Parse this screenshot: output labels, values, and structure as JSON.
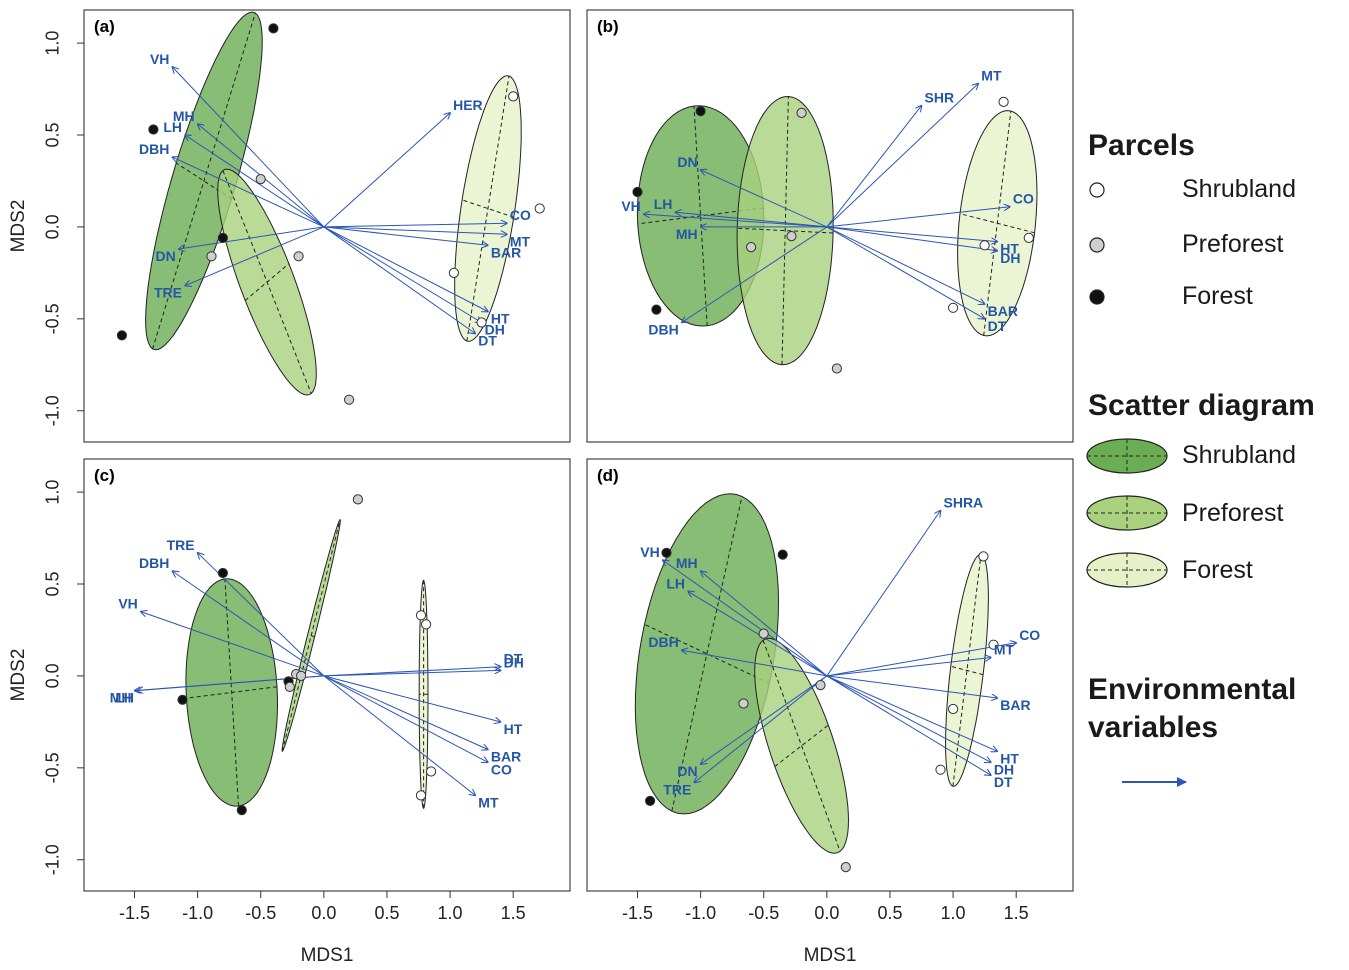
{
  "colors": {
    "shrubland_fill": "#6aad53",
    "preforest_fill": "#a9d17e",
    "forest_fill": "#e6f1c8",
    "arrow": "#2c56b8",
    "label": "#2456a6",
    "point_shrubland": "#ffffff",
    "point_preforest": "#cfcfcf",
    "point_forest": "#111111"
  },
  "axes": {
    "xlabel": "MDS1",
    "ylabel": "MDS2",
    "xlim": [
      -1.9,
      1.95
    ],
    "ylim": [
      -1.17,
      1.18
    ],
    "xticks": [
      "-1.5",
      "-1.0",
      "-0.5",
      "0.0",
      "0.5",
      "1.0",
      "1.5"
    ],
    "xtick_values": [
      -1.5,
      -1.0,
      -0.5,
      0.0,
      0.5,
      1.0,
      1.5
    ],
    "yticks": [
      "-1.0",
      "-0.5",
      "0.0",
      "0.5",
      "1.0"
    ],
    "ytick_values": [
      -1.0,
      -0.5,
      0.0,
      0.5,
      1.0
    ]
  },
  "legend": {
    "parcels_title": "Parcels",
    "parcels": [
      {
        "label": "Shrubland",
        "color": "#ffffff"
      },
      {
        "label": "Preforest",
        "color": "#cfcfcf"
      },
      {
        "label": "Forest",
        "color": "#111111"
      }
    ],
    "scatter_title": "Scatter diagram",
    "scatter": [
      {
        "label": "Shrubland",
        "color": "#6aad53"
      },
      {
        "label": "Preforest",
        "color": "#a9d17e"
      },
      {
        "label": "Forest",
        "color": "#e6f1c8"
      }
    ],
    "env_title_line1": "Environmental",
    "env_title_line2": "variables"
  },
  "chart_data": [
    {
      "type": "scatter",
      "panel": "(a)",
      "ellipses": [
        {
          "group": "Shrubland",
          "fill": "#6aad53",
          "cx": -0.95,
          "cy": 0.25,
          "a": 1.0,
          "b": 0.24,
          "angle_deg": 66
        },
        {
          "group": "Preforest",
          "fill": "#a9d17e",
          "cx": -0.45,
          "cy": -0.3,
          "a": 0.7,
          "b": 0.2,
          "angle_deg": -60
        },
        {
          "group": "Forest",
          "fill": "#e6f1c8",
          "cx": 1.3,
          "cy": 0.1,
          "a": 0.74,
          "b": 0.21,
          "angle_deg": 77
        }
      ],
      "points": [
        {
          "group": "Forest",
          "x": -0.4,
          "y": 1.08
        },
        {
          "group": "Forest",
          "x": -1.35,
          "y": 0.53
        },
        {
          "group": "Forest",
          "x": -0.8,
          "y": -0.06
        },
        {
          "group": "Forest",
          "x": -1.6,
          "y": -0.59
        },
        {
          "group": "Preforest",
          "x": -0.5,
          "y": 0.26
        },
        {
          "group": "Preforest",
          "x": -0.89,
          "y": -0.16
        },
        {
          "group": "Preforest",
          "x": -0.2,
          "y": -0.16
        },
        {
          "group": "Preforest",
          "x": 0.2,
          "y": -0.94
        },
        {
          "group": "Shrubland",
          "x": 1.5,
          "y": 0.71
        },
        {
          "group": "Shrubland",
          "x": 1.71,
          "y": 0.1
        },
        {
          "group": "Shrubland",
          "x": 1.03,
          "y": -0.25
        },
        {
          "group": "Shrubland",
          "x": 1.25,
          "y": -0.52
        }
      ],
      "vectors": [
        {
          "label": "VH",
          "x": -1.2,
          "y": 0.87
        },
        {
          "label": "MH",
          "x": -1.0,
          "y": 0.56
        },
        {
          "label": "LH",
          "x": -1.1,
          "y": 0.5
        },
        {
          "label": "DBH",
          "x": -1.2,
          "y": 0.38
        },
        {
          "label": "DN",
          "x": -1.15,
          "y": -0.12
        },
        {
          "label": "TRE",
          "x": -1.1,
          "y": -0.32
        },
        {
          "label": "HER",
          "x": 1.0,
          "y": 0.62
        },
        {
          "label": "CO",
          "x": 1.45,
          "y": 0.02
        },
        {
          "label": "MT",
          "x": 1.45,
          "y": -0.04
        },
        {
          "label": "BAR",
          "x": 1.3,
          "y": -0.1
        },
        {
          "label": "HT",
          "x": 1.3,
          "y": -0.46
        },
        {
          "label": "DH",
          "x": 1.25,
          "y": -0.52
        },
        {
          "label": "DT",
          "x": 1.2,
          "y": -0.58
        }
      ]
    },
    {
      "type": "scatter",
      "panel": "(b)",
      "ellipses": [
        {
          "group": "Shrubland",
          "fill": "#6aad53",
          "cx": -1.0,
          "cy": 0.06,
          "a": 0.6,
          "b": 0.5,
          "angle_deg": 95
        },
        {
          "group": "Preforest",
          "fill": "#a9d17e",
          "cx": -0.33,
          "cy": -0.02,
          "a": 0.73,
          "b": 0.38,
          "angle_deg": 88
        },
        {
          "group": "Forest",
          "fill": "#e6f1c8",
          "cx": 1.35,
          "cy": 0.02,
          "a": 0.62,
          "b": 0.3,
          "angle_deg": 80
        }
      ],
      "points": [
        {
          "group": "Forest",
          "x": -1.0,
          "y": 0.63
        },
        {
          "group": "Forest",
          "x": -1.5,
          "y": 0.19
        },
        {
          "group": "Forest",
          "x": -1.35,
          "y": -0.45
        },
        {
          "group": "Preforest",
          "x": -0.2,
          "y": 0.62
        },
        {
          "group": "Preforest",
          "x": -0.6,
          "y": -0.11
        },
        {
          "group": "Preforest",
          "x": -0.28,
          "y": -0.05
        },
        {
          "group": "Preforest",
          "x": 0.08,
          "y": -0.77
        },
        {
          "group": "Shrubland",
          "x": 1.4,
          "y": 0.68
        },
        {
          "group": "Shrubland",
          "x": 1.25,
          "y": -0.1
        },
        {
          "group": "Shrubland",
          "x": 1.6,
          "y": -0.06
        },
        {
          "group": "Shrubland",
          "x": 1.0,
          "y": -0.44
        }
      ],
      "vectors": [
        {
          "label": "DN",
          "x": -1.0,
          "y": 0.31
        },
        {
          "label": "LH",
          "x": -1.2,
          "y": 0.08
        },
        {
          "label": "VH",
          "x": -1.45,
          "y": 0.07
        },
        {
          "label": "MH",
          "x": -1.0,
          "y": 0.0
        },
        {
          "label": "DBH",
          "x": -1.15,
          "y": -0.52
        },
        {
          "label": "SHR",
          "x": 0.75,
          "y": 0.66
        },
        {
          "label": "MT",
          "x": 1.2,
          "y": 0.78
        },
        {
          "label": "CO",
          "x": 1.45,
          "y": 0.11
        },
        {
          "label": "HT",
          "x": 1.35,
          "y": -0.08
        },
        {
          "label": "DH",
          "x": 1.35,
          "y": -0.13
        },
        {
          "label": "BAR",
          "x": 1.25,
          "y": -0.42
        },
        {
          "label": "DT",
          "x": 1.25,
          "y": -0.5
        }
      ]
    },
    {
      "type": "scatter",
      "panel": "(c)",
      "ellipses": [
        {
          "group": "Shrubland",
          "fill": "#6aad53",
          "cx": -0.73,
          "cy": -0.09,
          "a": 0.62,
          "b": 0.36,
          "angle_deg": 95
        },
        {
          "group": "Preforest",
          "fill": "#a9d17e",
          "cx": -0.1,
          "cy": 0.22,
          "a": 0.67,
          "b": 0.028,
          "angle_deg": 70
        },
        {
          "group": "Forest",
          "fill": "#e6f1c8",
          "cx": 0.79,
          "cy": -0.1,
          "a": 0.62,
          "b": 0.035,
          "angle_deg": 90
        }
      ],
      "points": [
        {
          "group": "Forest",
          "x": -0.8,
          "y": 0.56
        },
        {
          "group": "Forest",
          "x": -1.12,
          "y": -0.13
        },
        {
          "group": "Forest",
          "x": -0.65,
          "y": -0.73
        },
        {
          "group": "Forest",
          "x": -0.28,
          "y": -0.03
        },
        {
          "group": "Preforest",
          "x": 0.27,
          "y": 0.96
        },
        {
          "group": "Preforest",
          "x": -0.22,
          "y": 0.01
        },
        {
          "group": "Preforest",
          "x": -0.27,
          "y": -0.06
        },
        {
          "group": "Preforest",
          "x": -0.18,
          "y": 0.0
        },
        {
          "group": "Shrubland",
          "x": 0.77,
          "y": 0.33
        },
        {
          "group": "Shrubland",
          "x": 0.81,
          "y": 0.28
        },
        {
          "group": "Shrubland",
          "x": 0.85,
          "y": -0.52
        },
        {
          "group": "Shrubland",
          "x": 0.77,
          "y": -0.65
        }
      ],
      "vectors": [
        {
          "label": "TRE",
          "x": -1.0,
          "y": 0.67
        },
        {
          "label": "DBH",
          "x": -1.2,
          "y": 0.57
        },
        {
          "label": "VH",
          "x": -1.45,
          "y": 0.35
        },
        {
          "label": "LH",
          "x": -1.48,
          "y": -0.08
        },
        {
          "label": "MH",
          "x": -1.5,
          "y": -0.08
        },
        {
          "label": "DT",
          "x": 1.4,
          "y": 0.05
        },
        {
          "label": "DH",
          "x": 1.4,
          "y": 0.03
        },
        {
          "label": "HT",
          "x": 1.4,
          "y": -0.25
        },
        {
          "label": "BAR",
          "x": 1.3,
          "y": -0.4
        },
        {
          "label": "CO",
          "x": 1.3,
          "y": -0.47
        },
        {
          "label": "MT",
          "x": 1.2,
          "y": -0.65
        }
      ]
    },
    {
      "type": "scatter",
      "panel": "(d)",
      "ellipses": [
        {
          "group": "Shrubland",
          "fill": "#6aad53",
          "cx": -0.95,
          "cy": 0.12,
          "a": 0.9,
          "b": 0.52,
          "angle_deg": 72
        },
        {
          "group": "Preforest",
          "fill": "#a9d17e",
          "cx": -0.2,
          "cy": -0.38,
          "a": 0.65,
          "b": 0.24,
          "angle_deg": -62
        },
        {
          "group": "Forest",
          "fill": "#e6f1c8",
          "cx": 1.11,
          "cy": 0.03,
          "a": 0.64,
          "b": 0.13,
          "angle_deg": 80
        }
      ],
      "points": [
        {
          "group": "Forest",
          "x": -1.27,
          "y": 0.67
        },
        {
          "group": "Forest",
          "x": -0.35,
          "y": 0.66
        },
        {
          "group": "Forest",
          "x": -1.4,
          "y": -0.68
        },
        {
          "group": "Preforest",
          "x": -0.5,
          "y": 0.23
        },
        {
          "group": "Preforest",
          "x": -0.66,
          "y": -0.15
        },
        {
          "group": "Preforest",
          "x": -0.05,
          "y": -0.05
        },
        {
          "group": "Preforest",
          "x": 0.15,
          "y": -1.04
        },
        {
          "group": "Shrubland",
          "x": 1.24,
          "y": 0.65
        },
        {
          "group": "Shrubland",
          "x": 1.32,
          "y": 0.17
        },
        {
          "group": "Shrubland",
          "x": 1.0,
          "y": -0.18
        },
        {
          "group": "Shrubland",
          "x": 0.9,
          "y": -0.51
        }
      ],
      "vectors": [
        {
          "label": "VH",
          "x": -1.3,
          "y": 0.63
        },
        {
          "label": "MH",
          "x": -1.0,
          "y": 0.57
        },
        {
          "label": "LH",
          "x": -1.1,
          "y": 0.46
        },
        {
          "label": "DBH",
          "x": -1.15,
          "y": 0.14
        },
        {
          "label": "DN",
          "x": -1.0,
          "y": -0.48
        },
        {
          "label": "TRE",
          "x": -1.05,
          "y": -0.58
        },
        {
          "label": "SHRA",
          "x": 0.9,
          "y": 0.9
        },
        {
          "label": "CO",
          "x": 1.5,
          "y": 0.18
        },
        {
          "label": "MT",
          "x": 1.3,
          "y": 0.1
        },
        {
          "label": "BAR",
          "x": 1.35,
          "y": -0.12
        },
        {
          "label": "HT",
          "x": 1.35,
          "y": -0.41
        },
        {
          "label": "DH",
          "x": 1.3,
          "y": -0.47
        },
        {
          "label": "DT",
          "x": 1.3,
          "y": -0.54
        }
      ]
    }
  ]
}
